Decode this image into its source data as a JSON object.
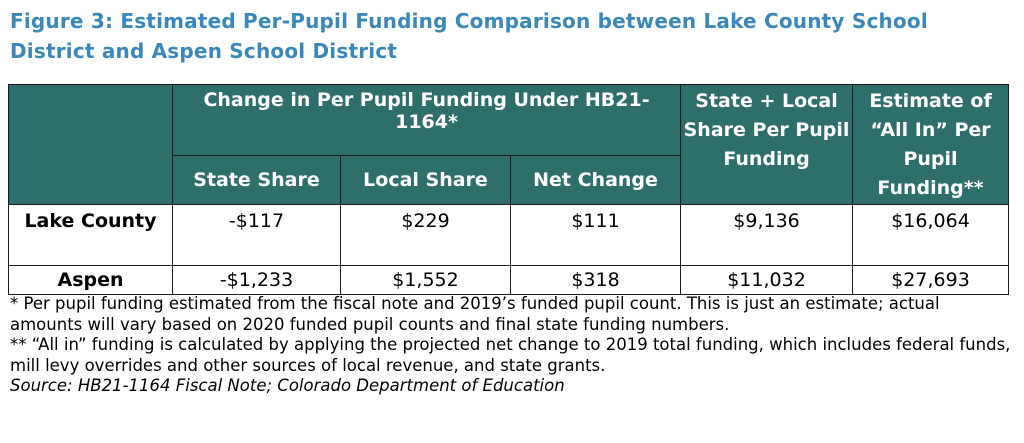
{
  "figure": {
    "title": "Figure 3: Estimated Per-Pupil Funding Comparison between Lake County School District and Aspen School District"
  },
  "table": {
    "group_header": "Change in Per Pupil Funding Under HB21-1164*",
    "sub_headers": [
      "State Share",
      "Local Share",
      "Net Change"
    ],
    "col_state_local": "State + Local Share Per Pupil Funding",
    "col_all_in": "Estimate of “All In” Per Pupil Funding**",
    "rows": [
      {
        "name": "Lake County",
        "state_share": "-$117",
        "local_share": "$229",
        "net_change": "$111",
        "state_local": "$9,136",
        "all_in": "$16,064"
      },
      {
        "name": "Aspen",
        "state_share": "-$1,233",
        "local_share": "$1,552",
        "net_change": "$318",
        "state_local": "$11,032",
        "all_in": "$27,693"
      }
    ],
    "header_color": "#2e6f6c"
  },
  "notes": {
    "note1": "* Per pupil funding estimated from the fiscal note and 2019’s funded pupil count. This is just an estimate; actual amounts will vary based on 2020 funded pupil counts and final state funding numbers.",
    "note2": "** “All in” funding is calculated by applying the projected net change to 2019 total funding, which includes federal funds, mill levy overrides and other sources of local revenue, and state grants.",
    "source": "Source: HB21-1164 Fiscal Note; Colorado Department of Education"
  },
  "colors": {
    "title": "#3a88bb",
    "header_bg": "#2e6f6c"
  }
}
